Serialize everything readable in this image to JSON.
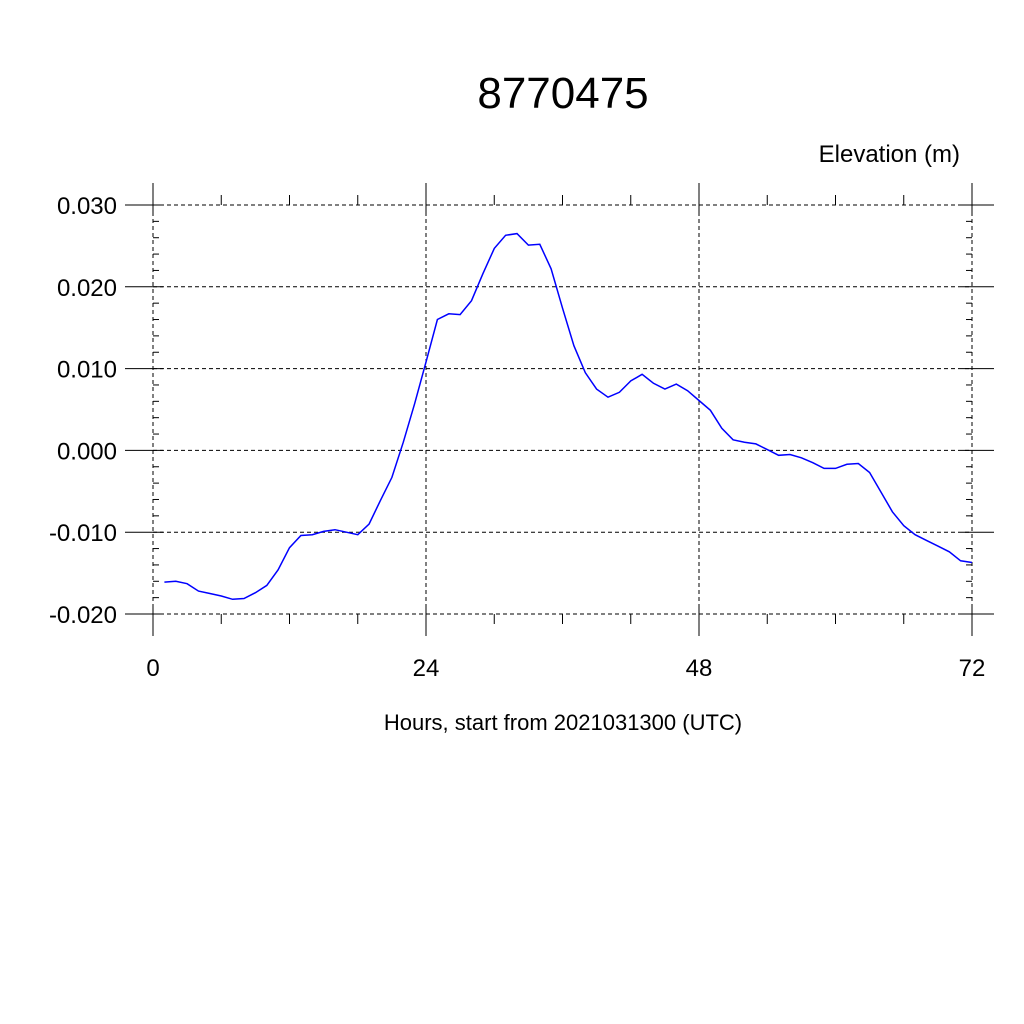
{
  "chart_data": {
    "type": "line",
    "title": "8770475",
    "ylabel": "Elevation (m)",
    "xlabel": "Hours, start from 2021031300 (UTC)",
    "xlim": [
      0,
      72
    ],
    "ylim": [
      -0.02,
      0.03
    ],
    "x_ticks": [
      0,
      24,
      48,
      72
    ],
    "x_tick_labels": [
      "0",
      "24",
      "48",
      "72"
    ],
    "y_ticks": [
      -0.02,
      -0.01,
      0.0,
      0.01,
      0.02,
      0.03
    ],
    "y_tick_labels": [
      "-0.020",
      "-0.010",
      "0.000",
      "0.010",
      "0.020",
      "0.030"
    ],
    "grid": true,
    "grid_style": "dashed",
    "series": [
      {
        "color": "#0000ff",
        "x": [
          1,
          2,
          3,
          4,
          5,
          6,
          7,
          8,
          9,
          10,
          11,
          12,
          13,
          14,
          15,
          16,
          17,
          18,
          19,
          20,
          21,
          22,
          23,
          24,
          25,
          26,
          27,
          28,
          29,
          30,
          31,
          32,
          33,
          34,
          35,
          36,
          37,
          38,
          39,
          40,
          41,
          42,
          43,
          44,
          45,
          46,
          47,
          48,
          49,
          50,
          51,
          52,
          53,
          54,
          55,
          56,
          57,
          58,
          59,
          60,
          61,
          62,
          63,
          64,
          65,
          66,
          67,
          68,
          69,
          70,
          71,
          72
        ],
        "y": [
          -0.0161,
          -0.016,
          -0.0163,
          -0.0172,
          -0.0175,
          -0.0178,
          -0.0182,
          -0.0181,
          -0.0174,
          -0.0165,
          -0.0146,
          -0.0119,
          -0.0104,
          -0.0103,
          -0.0099,
          -0.0097,
          -0.01,
          -0.0103,
          -0.009,
          -0.0061,
          -0.0033,
          0.001,
          0.0057,
          0.0108,
          0.016,
          0.0167,
          0.0166,
          0.0183,
          0.0216,
          0.0247,
          0.0263,
          0.0265,
          0.0251,
          0.0252,
          0.0222,
          0.0174,
          0.0128,
          0.0095,
          0.0075,
          0.0065,
          0.0071,
          0.0085,
          0.0093,
          0.0082,
          0.0075,
          0.0081,
          0.0073,
          0.0061,
          0.0049,
          0.0027,
          0.0013,
          0.001,
          0.0008,
          0.0001,
          -0.0006,
          -0.0005,
          -0.0009,
          -0.0015,
          -0.0022,
          -0.0022,
          -0.0017,
          -0.0016,
          -0.0027,
          -0.0051,
          -0.0075,
          -0.0092,
          -0.0103,
          -0.011,
          -0.0117,
          -0.0124,
          -0.0135,
          -0.0137
        ]
      }
    ]
  }
}
